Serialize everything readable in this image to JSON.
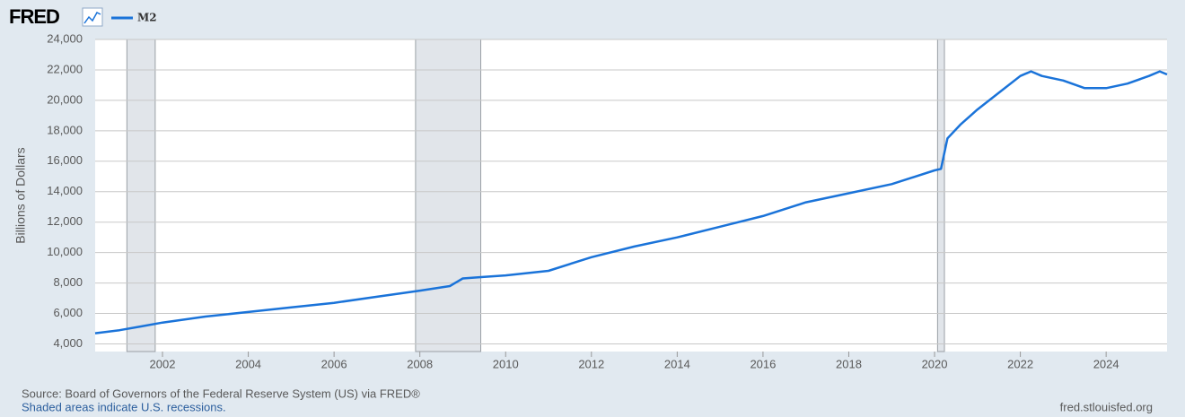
{
  "chart_data": {
    "type": "line",
    "logo": "FRED",
    "y_label": "Billions of Dollars",
    "source": "Source: Board of Governors of the Federal Reserve System (US) via FRED®",
    "note": "Shaded areas indicate U.S. recessions.",
    "url": "fred.stlouisfed.org",
    "x": [
      2000.43,
      2001.0,
      2001.5,
      2002.0,
      2003.0,
      2004.0,
      2005.0,
      2006.0,
      2007.0,
      2008.0,
      2008.7,
      2009.0,
      2009.5,
      2010.0,
      2011.0,
      2012.0,
      2013.0,
      2014.0,
      2015.0,
      2016.0,
      2017.0,
      2018.0,
      2019.0,
      2020.0,
      2020.15,
      2020.3,
      2020.6,
      2021.0,
      2021.5,
      2022.0,
      2022.25,
      2022.5,
      2023.0,
      2023.5,
      2024.0,
      2024.5,
      2025.0,
      2025.25,
      2025.42
    ],
    "series": [
      {
        "name": "M2",
        "color": "#1a73d9",
        "values": [
          4700,
          4900,
          5150,
          5400,
          5800,
          6100,
          6400,
          6700,
          7100,
          7500,
          7800,
          8300,
          8400,
          8500,
          8800,
          9700,
          10400,
          11000,
          11700,
          12400,
          13300,
          13900,
          14500,
          15400,
          15500,
          17500,
          18400,
          19400,
          20500,
          21600,
          21900,
          21600,
          21300,
          20800,
          20800,
          21100,
          21600,
          21900,
          21700
        ]
      }
    ],
    "recessions": [
      [
        2001.17,
        2001.83
      ],
      [
        2007.9,
        2009.42
      ],
      [
        2020.07,
        2020.23
      ]
    ],
    "xlim": [
      2000.43,
      2025.42
    ],
    "ylim": [
      3500,
      24000
    ],
    "xticks": [
      2002,
      2004,
      2006,
      2008,
      2010,
      2012,
      2014,
      2016,
      2018,
      2020,
      2022,
      2024
    ],
    "yticks": [
      {
        "value": 4000,
        "label": "4,000"
      },
      {
        "value": 6000,
        "label": "6,000"
      },
      {
        "value": 8000,
        "label": "8,000"
      },
      {
        "value": 10000,
        "label": "10,000"
      },
      {
        "value": 12000,
        "label": "12,000"
      },
      {
        "value": 14000,
        "label": "14,000"
      },
      {
        "value": 16000,
        "label": "16,000"
      },
      {
        "value": 18000,
        "label": "18,000"
      },
      {
        "value": 20000,
        "label": "20,000"
      },
      {
        "value": 22000,
        "label": "22,000"
      },
      {
        "value": 24000,
        "label": "24,000"
      }
    ],
    "grid": true
  }
}
